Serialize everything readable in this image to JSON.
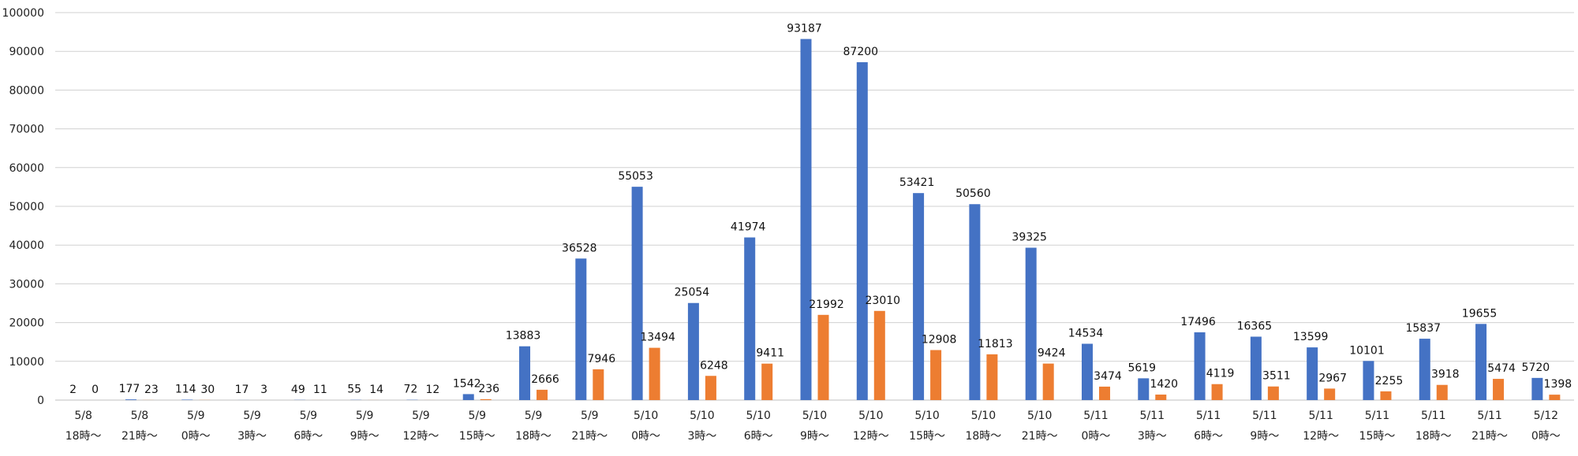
{
  "chart_data": {
    "type": "bar",
    "categories": [
      [
        "5/8",
        "18時〜"
      ],
      [
        "5/8",
        "21時〜"
      ],
      [
        "5/9",
        "0時〜"
      ],
      [
        "5/9",
        "3時〜"
      ],
      [
        "5/9",
        "6時〜"
      ],
      [
        "5/9",
        "9時〜"
      ],
      [
        "5/9",
        "12時〜"
      ],
      [
        "5/9",
        "15時〜"
      ],
      [
        "5/9",
        "18時〜"
      ],
      [
        "5/9",
        "21時〜"
      ],
      [
        "5/10",
        "0時〜"
      ],
      [
        "5/10",
        "3時〜"
      ],
      [
        "5/10",
        "6時〜"
      ],
      [
        "5/10",
        "9時〜"
      ],
      [
        "5/10",
        "12時〜"
      ],
      [
        "5/10",
        "15時〜"
      ],
      [
        "5/10",
        "18時〜"
      ],
      [
        "5/10",
        "21時〜"
      ],
      [
        "5/11",
        "0時〜"
      ],
      [
        "5/11",
        "3時〜"
      ],
      [
        "5/11",
        "6時〜"
      ],
      [
        "5/11",
        "9時〜"
      ],
      [
        "5/11",
        "12時〜"
      ],
      [
        "5/11",
        "15時〜"
      ],
      [
        "5/11",
        "18時〜"
      ],
      [
        "5/11",
        "21時〜"
      ],
      [
        "5/12",
        "0時〜"
      ]
    ],
    "series": [
      {
        "color": "#4472c4",
        "values": [
          2,
          177,
          114,
          17,
          49,
          55,
          72,
          1542,
          13883,
          36528,
          55053,
          25054,
          41974,
          93187,
          87200,
          53421,
          50560,
          39325,
          14534,
          5619,
          17496,
          16365,
          13599,
          10101,
          15837,
          19655,
          5720
        ]
      },
      {
        "color": "#ed7d31",
        "values": [
          0,
          23,
          30,
          3,
          11,
          14,
          12,
          236,
          2666,
          7946,
          13494,
          6248,
          9411,
          21992,
          23010,
          12908,
          11813,
          9424,
          3474,
          1420,
          4119,
          3511,
          2967,
          2255,
          3918,
          5474,
          1398
        ]
      }
    ],
    "yticks": [
      0,
      10000,
      20000,
      30000,
      40000,
      50000,
      60000,
      70000,
      80000,
      90000,
      100000
    ],
    "ylim": [
      0,
      100000
    ],
    "grid": true,
    "legend": "none",
    "data_labels": true
  }
}
